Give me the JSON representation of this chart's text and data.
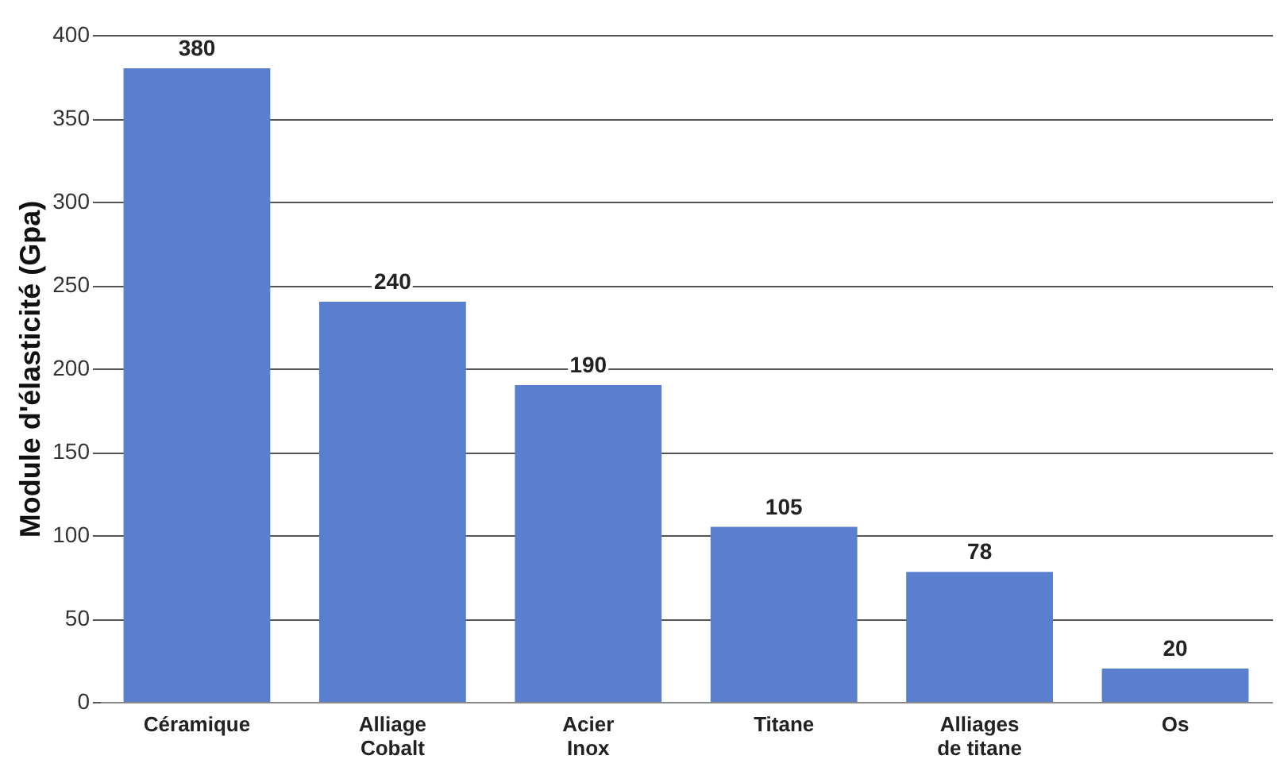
{
  "chart_data": {
    "type": "bar",
    "ylabel": "Module d'élasticité (Gpa)",
    "categories": [
      "Céramique",
      "Alliage Cobalt",
      "Acier Inox",
      "Titane",
      "Alliages de titane",
      "Os"
    ],
    "values": [
      380,
      240,
      190,
      105,
      78,
      20
    ],
    "color": "#5b7fcf",
    "ylim": [
      0,
      400
    ],
    "yticks": [
      0,
      50,
      100,
      150,
      200,
      250,
      300,
      350,
      400
    ],
    "grid": "y",
    "data_labels": true
  }
}
